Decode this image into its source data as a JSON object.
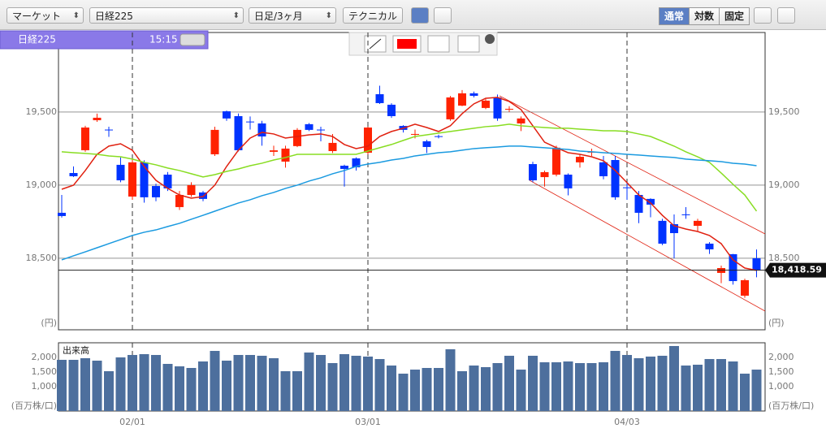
{
  "toolbar": {
    "market": "マーケット",
    "symbol": "日経225",
    "period": "日足/3ヶ月",
    "technical": "テクニカル",
    "modes": [
      "通常",
      "対数",
      "固定"
    ]
  },
  "info": {
    "symbol": "日経225",
    "time": "15:15"
  },
  "chart_data": {
    "type": "candlestick",
    "categories": [
      null,
      null,
      null,
      null,
      null,
      null,
      "02/01",
      null,
      null,
      null,
      null,
      null,
      null,
      null,
      null,
      null,
      null,
      null,
      null,
      null,
      null,
      null,
      null,
      null,
      null,
      null,
      "03/01",
      null,
      null,
      null,
      null,
      null,
      null,
      null,
      null,
      null,
      null,
      null,
      null,
      null,
      null,
      null,
      null,
      null,
      null,
      null,
      null,
      null,
      "04/03",
      null,
      null,
      null,
      null,
      null,
      null,
      null,
      null,
      null,
      null,
      null
    ],
    "open": [
      18811,
      19083,
      19239,
      19444,
      19380,
      19139,
      18922,
      19156,
      18994,
      19072,
      18850,
      18933,
      18950,
      19211,
      19505,
      19472,
      19435,
      19422,
      19228,
      19161,
      19267,
      19417,
      19380,
      19233,
      19133,
      19183,
      19222,
      19622,
      19550,
      19405,
      19345,
      19300,
      19335,
      19450,
      19544,
      19628,
      19528,
      19600,
      19520,
      19422,
      19144,
      19055,
      19072,
      19072,
      19156,
      19225,
      19156,
      19172,
      18985,
      18933,
      18906,
      18756,
      18733,
      18800,
      18722,
      18600,
      18400,
      18528,
      18244,
      18500
    ],
    "high": [
      18933,
      19128,
      19406,
      19489,
      19400,
      19190,
      19180,
      19170,
      19010,
      19090,
      18960,
      19020,
      18960,
      19400,
      19510,
      19490,
      19470,
      19440,
      19270,
      19270,
      19390,
      19425,
      19400,
      19350,
      19140,
      19190,
      19400,
      19680,
      19560,
      19410,
      19380,
      19310,
      19345,
      19610,
      19650,
      19640,
      19590,
      19620,
      19540,
      19470,
      19160,
      19100,
      19270,
      19080,
      19210,
      19250,
      19200,
      19200,
      19020,
      18960,
      18910,
      18770,
      18800,
      18850,
      18770,
      18610,
      18450,
      18530,
      18360,
      18560
    ],
    "low": [
      18778,
      19056,
      19228,
      19433,
      19330,
      19020,
      18900,
      18880,
      18890,
      18960,
      18830,
      18920,
      18890,
      19200,
      19440,
      19230,
      19380,
      19270,
      19200,
      19120,
      19260,
      19370,
      19300,
      19220,
      18990,
      19100,
      19210,
      19555,
      19460,
      19360,
      19320,
      19220,
      19320,
      19440,
      19540,
      19600,
      19520,
      19440,
      19500,
      19370,
      19020,
      18990,
      19060,
      18930,
      19120,
      19200,
      19040,
      18900,
      18900,
      18740,
      18780,
      18590,
      18500,
      18770,
      18680,
      18530,
      18330,
      18320,
      18230,
      18370
    ],
    "close": [
      18789,
      19061,
      19394,
      19461,
      19378,
      19033,
      19156,
      18917,
      18917,
      18978,
      18933,
      19000,
      18906,
      19378,
      19456,
      19239,
      19430,
      19333,
      19238,
      19250,
      19378,
      19378,
      19375,
      19289,
      19111,
      19122,
      19394,
      19561,
      19472,
      19378,
      19350,
      19261,
      19330,
      19600,
      19628,
      19611,
      19578,
      19456,
      19522,
      19456,
      19033,
      19089,
      19256,
      18978,
      19194,
      19228,
      19061,
      18917,
      18980,
      18811,
      18867,
      18600,
      18672,
      18795,
      18756,
      18561,
      18433,
      18344,
      18350,
      18418.59
    ],
    "up_color": "#ff2200",
    "down_color": "#0033ff",
    "ylim": [
      18011,
      20044
    ],
    "yticks": [
      {
        "value": 18500,
        "label": "18,500"
      },
      {
        "value": 19000,
        "label": "19,000"
      },
      {
        "value": 19500,
        "label": "19,500"
      }
    ],
    "y_unit": "(円)",
    "last_price": {
      "value": 18418.59,
      "label": "18,418.59"
    },
    "moving_averages": [
      {
        "color": "#e0200f",
        "values": [
          18972,
          19000,
          19100,
          19211,
          19267,
          19283,
          19239,
          19128,
          19033,
          18978,
          18933,
          18911,
          18922,
          19000,
          19128,
          19239,
          19322,
          19361,
          19350,
          19322,
          19333,
          19344,
          19350,
          19333,
          19278,
          19250,
          19267,
          19333,
          19367,
          19389,
          19417,
          19394,
          19367,
          19406,
          19489,
          19556,
          19594,
          19600,
          19572,
          19517,
          19406,
          19294,
          19256,
          19222,
          19211,
          19194,
          19167,
          19100,
          19017,
          18933,
          18878,
          18794,
          18722,
          18700,
          18683,
          18656,
          18600,
          18489,
          18433,
          18417
        ]
      },
      {
        "color": "#88dd22",
        "values": [
          19228,
          19222,
          19217,
          19211,
          19200,
          19194,
          19178,
          19156,
          19139,
          19117,
          19100,
          19078,
          19056,
          19072,
          19094,
          19111,
          19133,
          19150,
          19172,
          19189,
          19211,
          19211,
          19211,
          19211,
          19211,
          19211,
          19233,
          19256,
          19278,
          19306,
          19333,
          19344,
          19356,
          19367,
          19378,
          19389,
          19400,
          19406,
          19417,
          19406,
          19400,
          19394,
          19389,
          19389,
          19383,
          19378,
          19372,
          19372,
          19367,
          19350,
          19333,
          19300,
          19267,
          19228,
          19194,
          19156,
          19083,
          19006,
          18933,
          18822
        ]
      },
      {
        "color": "#1a9ae0",
        "values": [
          18489,
          18517,
          18544,
          18572,
          18600,
          18628,
          18656,
          18678,
          18694,
          18717,
          18739,
          18767,
          18794,
          18822,
          18850,
          18878,
          18900,
          18928,
          18950,
          18978,
          19000,
          19028,
          19050,
          19078,
          19100,
          19128,
          19144,
          19156,
          19172,
          19183,
          19200,
          19211,
          19222,
          19228,
          19239,
          19250,
          19256,
          19261,
          19267,
          19267,
          19261,
          19256,
          19250,
          19244,
          19233,
          19228,
          19222,
          19217,
          19211,
          19206,
          19200,
          19194,
          19189,
          19178,
          19172,
          19167,
          19161,
          19150,
          19144,
          19133
        ]
      }
    ],
    "volume": {
      "title": "出来高",
      "color": "#4d6f9d",
      "unit": "(百万株/口)",
      "values": [
        1917,
        1917,
        1972,
        1889,
        1528,
        2000,
        2083,
        2111,
        2083,
        1778,
        1694,
        1639,
        1861,
        2222,
        1889,
        2083,
        2083,
        2056,
        1972,
        1528,
        1528,
        2167,
        2083,
        1806,
        2111,
        2056,
        2028,
        1944,
        1722,
        1444,
        1583,
        1639,
        1639,
        2278,
        1528,
        1722,
        1667,
        1806,
        2056,
        1583,
        2056,
        1833,
        1833,
        1861,
        1806,
        1806,
        1833,
        2222,
        2083,
        1972,
        2028,
        2056,
        2389,
        1722,
        1750,
        1944,
        1944,
        1861,
        1444,
        1583
      ],
      "ylim": [
        167,
        2500
      ],
      "yticks": [
        {
          "value": 1000,
          "label": "1,000"
        },
        {
          "value": 1500,
          "label": "1,500"
        },
        {
          "value": 2000,
          "label": "2,000"
        }
      ]
    }
  }
}
